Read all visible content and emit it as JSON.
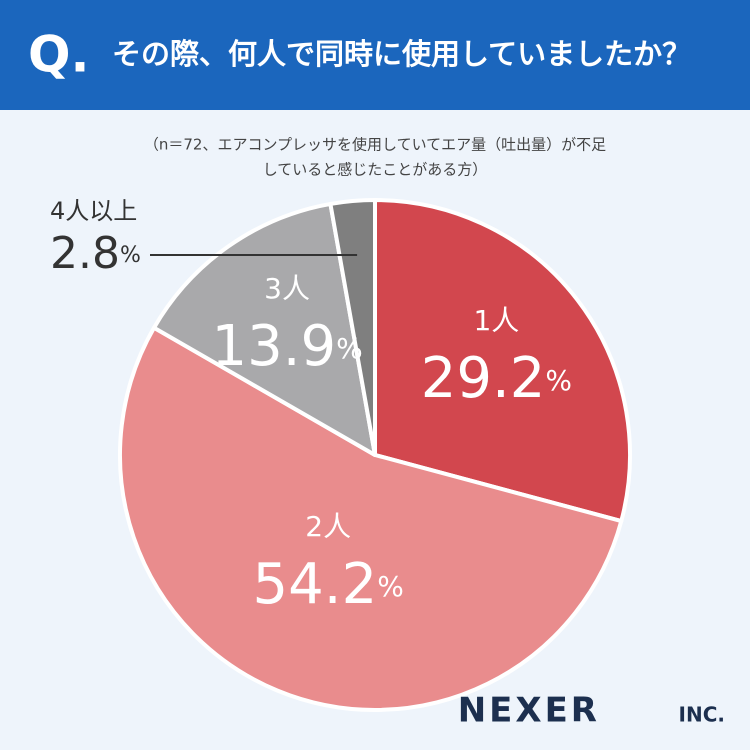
{
  "header": {
    "q": "Q.",
    "title": "その際、何人で同時に使用していましたか？"
  },
  "chart_data": {
    "type": "pie",
    "subtitle": [
      "（n＝72、エアコンプレッサを使用していてエア量（吐出量）が不足",
      "していると感じたことがある方）"
    ],
    "categories": [
      "1人",
      "2人",
      "3人",
      "4人以上"
    ],
    "values": [
      29.2,
      54.2,
      13.9,
      2.8
    ],
    "unit": "%",
    "colors": [
      "#d2474e",
      "#e98c8d",
      "#a9a9ab",
      "#7f7f7f"
    ]
  },
  "footer": {
    "brand": "NEXER",
    "suffix": "INC."
  }
}
